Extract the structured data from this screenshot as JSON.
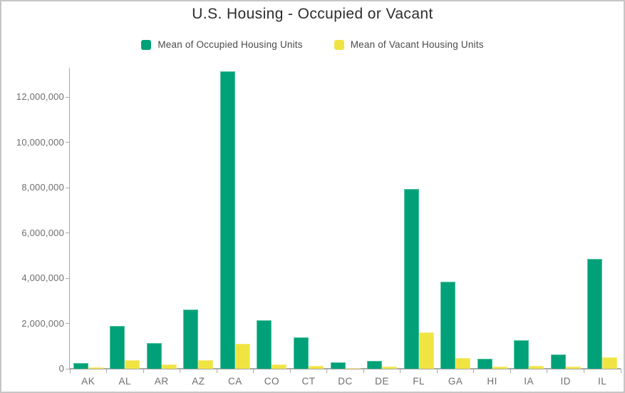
{
  "chart_data": {
    "type": "bar",
    "title": "U.S. Housing - Occupied or Vacant",
    "categories": [
      "AK",
      "AL",
      "AR",
      "AZ",
      "CA",
      "CO",
      "CT",
      "DC",
      "DE",
      "FL",
      "GA",
      "HI",
      "IA",
      "ID",
      "IL"
    ],
    "series": [
      {
        "name": "Mean of Occupied Housing Units",
        "color": "#00a178",
        "values": [
          240000,
          1880000,
          1150000,
          2620000,
          13150000,
          2140000,
          1390000,
          270000,
          360000,
          7950000,
          3830000,
          430000,
          1250000,
          630000,
          4850000
        ]
      },
      {
        "name": "Mean of Vacant Housing Units",
        "color": "#f0e442",
        "values": [
          65000,
          380000,
          190000,
          380000,
          1100000,
          200000,
          120000,
          30000,
          100000,
          1600000,
          480000,
          85000,
          140000,
          85000,
          500000
        ]
      }
    ],
    "xlabel": "",
    "ylabel": "",
    "ylim": [
      0,
      13400000
    ],
    "ytick_values": [
      0,
      2000000,
      4000000,
      6000000,
      8000000,
      10000000,
      12000000
    ],
    "ytick_labels": [
      "0",
      "2,000,000",
      "4,000,000",
      "6,000,000",
      "8,000,000",
      "10,000,000",
      "12,000,000"
    ],
    "grid": "off",
    "legend_position": "top"
  },
  "colors": {
    "occupied": "#00a178",
    "vacant": "#f0e442",
    "axis": "#a9a9a9",
    "tick_text": "#6e6e6e",
    "title_text": "#2d2d2d",
    "frame_border": "#c6c6c6"
  }
}
